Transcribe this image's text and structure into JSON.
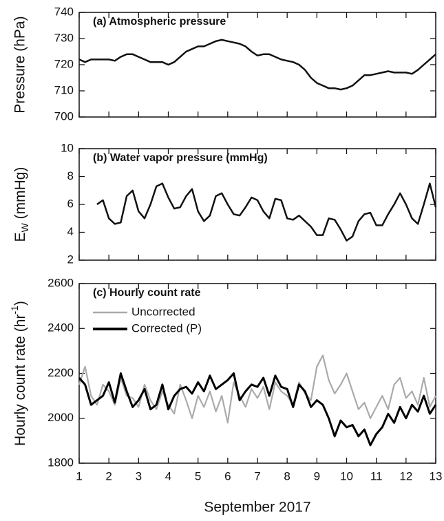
{
  "chart_data": [
    {
      "type": "line",
      "title": "(a) Atmospheric pressure",
      "ylabel": "Pressure (hPa)",
      "x": [
        1,
        1.2,
        1.4,
        1.6,
        1.8,
        2,
        2.2,
        2.4,
        2.6,
        2.8,
        3,
        3.2,
        3.4,
        3.6,
        3.8,
        4,
        4.2,
        4.4,
        4.6,
        4.8,
        5,
        5.2,
        5.4,
        5.6,
        5.8,
        6,
        6.2,
        6.4,
        6.6,
        6.8,
        7,
        7.2,
        7.4,
        7.6,
        7.8,
        8,
        8.2,
        8.4,
        8.6,
        8.8,
        9,
        9.2,
        9.4,
        9.6,
        9.8,
        10,
        10.2,
        10.4,
        10.6,
        10.8,
        11,
        11.2,
        11.4,
        11.6,
        11.8,
        12,
        12.2,
        12.4,
        12.6,
        12.8,
        13
      ],
      "values": [
        722,
        721,
        722,
        722,
        722,
        722,
        721.5,
        723,
        724,
        724,
        723,
        722,
        721,
        721,
        721,
        720,
        721,
        723,
        725,
        726,
        727,
        727,
        728,
        729,
        729.5,
        729,
        728.5,
        728,
        727,
        725,
        723.5,
        724,
        724,
        723,
        722,
        721.5,
        721,
        720,
        718,
        715,
        713,
        712,
        711,
        711,
        710.5,
        711,
        712,
        714,
        716,
        716,
        716.5,
        717,
        717.5,
        717,
        717,
        717,
        716.5,
        718,
        720,
        722,
        724
      ],
      "color": "#111111",
      "xlim": [
        1,
        13
      ],
      "xticks": [
        1,
        2,
        3,
        4,
        5,
        6,
        7,
        8,
        9,
        10,
        11,
        12,
        13
      ],
      "ylim": [
        700,
        740
      ],
      "yticks": [
        700,
        710,
        720,
        730,
        740
      ]
    },
    {
      "type": "line",
      "title": "(b) Water vapor pressure (mmHg)",
      "ylabel": {
        "main": "E",
        "sub": "W",
        "rest": " (mmHg)"
      },
      "x": [
        1,
        1.2,
        1.4,
        1.6,
        1.8,
        2,
        2.2,
        2.4,
        2.6,
        2.8,
        3,
        3.2,
        3.4,
        3.6,
        3.8,
        4,
        4.2,
        4.4,
        4.6,
        4.8,
        5,
        5.2,
        5.4,
        5.6,
        5.8,
        6,
        6.2,
        6.4,
        6.6,
        6.8,
        7,
        7.2,
        7.4,
        7.6,
        7.8,
        8,
        8.2,
        8.4,
        8.6,
        8.8,
        9,
        9.2,
        9.4,
        9.6,
        9.8,
        10,
        10.2,
        10.4,
        10.6,
        10.8,
        11,
        11.2,
        11.4,
        11.6,
        11.8,
        12,
        12.2,
        12.4,
        12.6,
        12.8,
        13
      ],
      "values": [
        null,
        null,
        null,
        6.0,
        6.3,
        5.0,
        4.6,
        4.7,
        6.6,
        7.0,
        5.5,
        5.0,
        6.0,
        7.3,
        7.5,
        6.5,
        5.7,
        5.8,
        6.6,
        7.1,
        5.5,
        4.8,
        5.2,
        6.6,
        6.8,
        6.0,
        5.3,
        5.2,
        5.8,
        6.5,
        6.3,
        5.5,
        5.0,
        6.4,
        6.3,
        5.0,
        4.9,
        5.2,
        4.8,
        4.4,
        3.8,
        3.8,
        5.0,
        4.9,
        4.2,
        3.4,
        3.7,
        4.8,
        5.3,
        5.4,
        4.5,
        4.5,
        5.3,
        6.0,
        6.8,
        6.0,
        5.0,
        4.6,
        6.0,
        7.5,
        5.8
      ],
      "color": "#111111",
      "xlim": [
        1,
        13
      ],
      "xticks": [
        1,
        2,
        3,
        4,
        5,
        6,
        7,
        8,
        9,
        10,
        11,
        12,
        13
      ],
      "ylim": [
        2,
        10
      ],
      "yticks": [
        2,
        4,
        6,
        8,
        10
      ]
    },
    {
      "type": "line",
      "title": "(c) Hourly count rate",
      "ylabel": {
        "main": "Hourly count rate (hr",
        "sup": "-1",
        "rest": ")"
      },
      "xlabel": "September 2017",
      "x": [
        1,
        1.2,
        1.4,
        1.6,
        1.8,
        2,
        2.2,
        2.4,
        2.6,
        2.8,
        3,
        3.2,
        3.4,
        3.6,
        3.8,
        4,
        4.2,
        4.4,
        4.6,
        4.8,
        5,
        5.2,
        5.4,
        5.6,
        5.8,
        6,
        6.2,
        6.4,
        6.6,
        6.8,
        7,
        7.2,
        7.4,
        7.6,
        7.8,
        8,
        8.2,
        8.4,
        8.6,
        8.8,
        9,
        9.2,
        9.4,
        9.6,
        9.8,
        10,
        10.2,
        10.4,
        10.6,
        10.8,
        11,
        11.2,
        11.4,
        11.6,
        11.8,
        12,
        12.2,
        12.4,
        12.6,
        12.8,
        13
      ],
      "series": [
        {
          "name": "Uncorrected",
          "color": "#aaaaaa",
          "values": [
            2150,
            2230,
            2100,
            2060,
            2150,
            2120,
            2060,
            2180,
            2100,
            2090,
            2050,
            2150,
            2080,
            2040,
            2120,
            2060,
            2020,
            2150,
            2080,
            2000,
            2100,
            2050,
            2120,
            2030,
            2100,
            1980,
            2160,
            2100,
            2050,
            2130,
            2090,
            2140,
            2040,
            2160,
            2120,
            2100,
            2060,
            2160,
            2110,
            2080,
            2230,
            2280,
            2170,
            2110,
            2150,
            2200,
            2120,
            2040,
            2070,
            2000,
            2050,
            2100,
            2040,
            2150,
            2180,
            2090,
            2120,
            2060,
            2180,
            2050,
            2100
          ]
        },
        {
          "name": "Corrected (P)",
          "color": "#000000",
          "values": [
            2180,
            2150,
            2060,
            2080,
            2100,
            2160,
            2070,
            2200,
            2120,
            2050,
            2080,
            2130,
            2040,
            2060,
            2150,
            2040,
            2100,
            2130,
            2140,
            2110,
            2160,
            2120,
            2190,
            2130,
            2150,
            2170,
            2200,
            2080,
            2120,
            2150,
            2140,
            2180,
            2100,
            2190,
            2140,
            2130,
            2050,
            2150,
            2120,
            2050,
            2080,
            2060,
            2000,
            1920,
            1990,
            1960,
            1970,
            1920,
            1950,
            1880,
            1930,
            1960,
            2020,
            1980,
            2050,
            2000,
            2060,
            2030,
            2100,
            2020,
            2060
          ]
        }
      ],
      "xlim": [
        1,
        13
      ],
      "xticks": [
        1,
        2,
        3,
        4,
        5,
        6,
        7,
        8,
        9,
        10,
        11,
        12,
        13
      ],
      "ylim": [
        1800,
        2600
      ],
      "yticks": [
        1800,
        2000,
        2200,
        2400,
        2600
      ]
    }
  ]
}
